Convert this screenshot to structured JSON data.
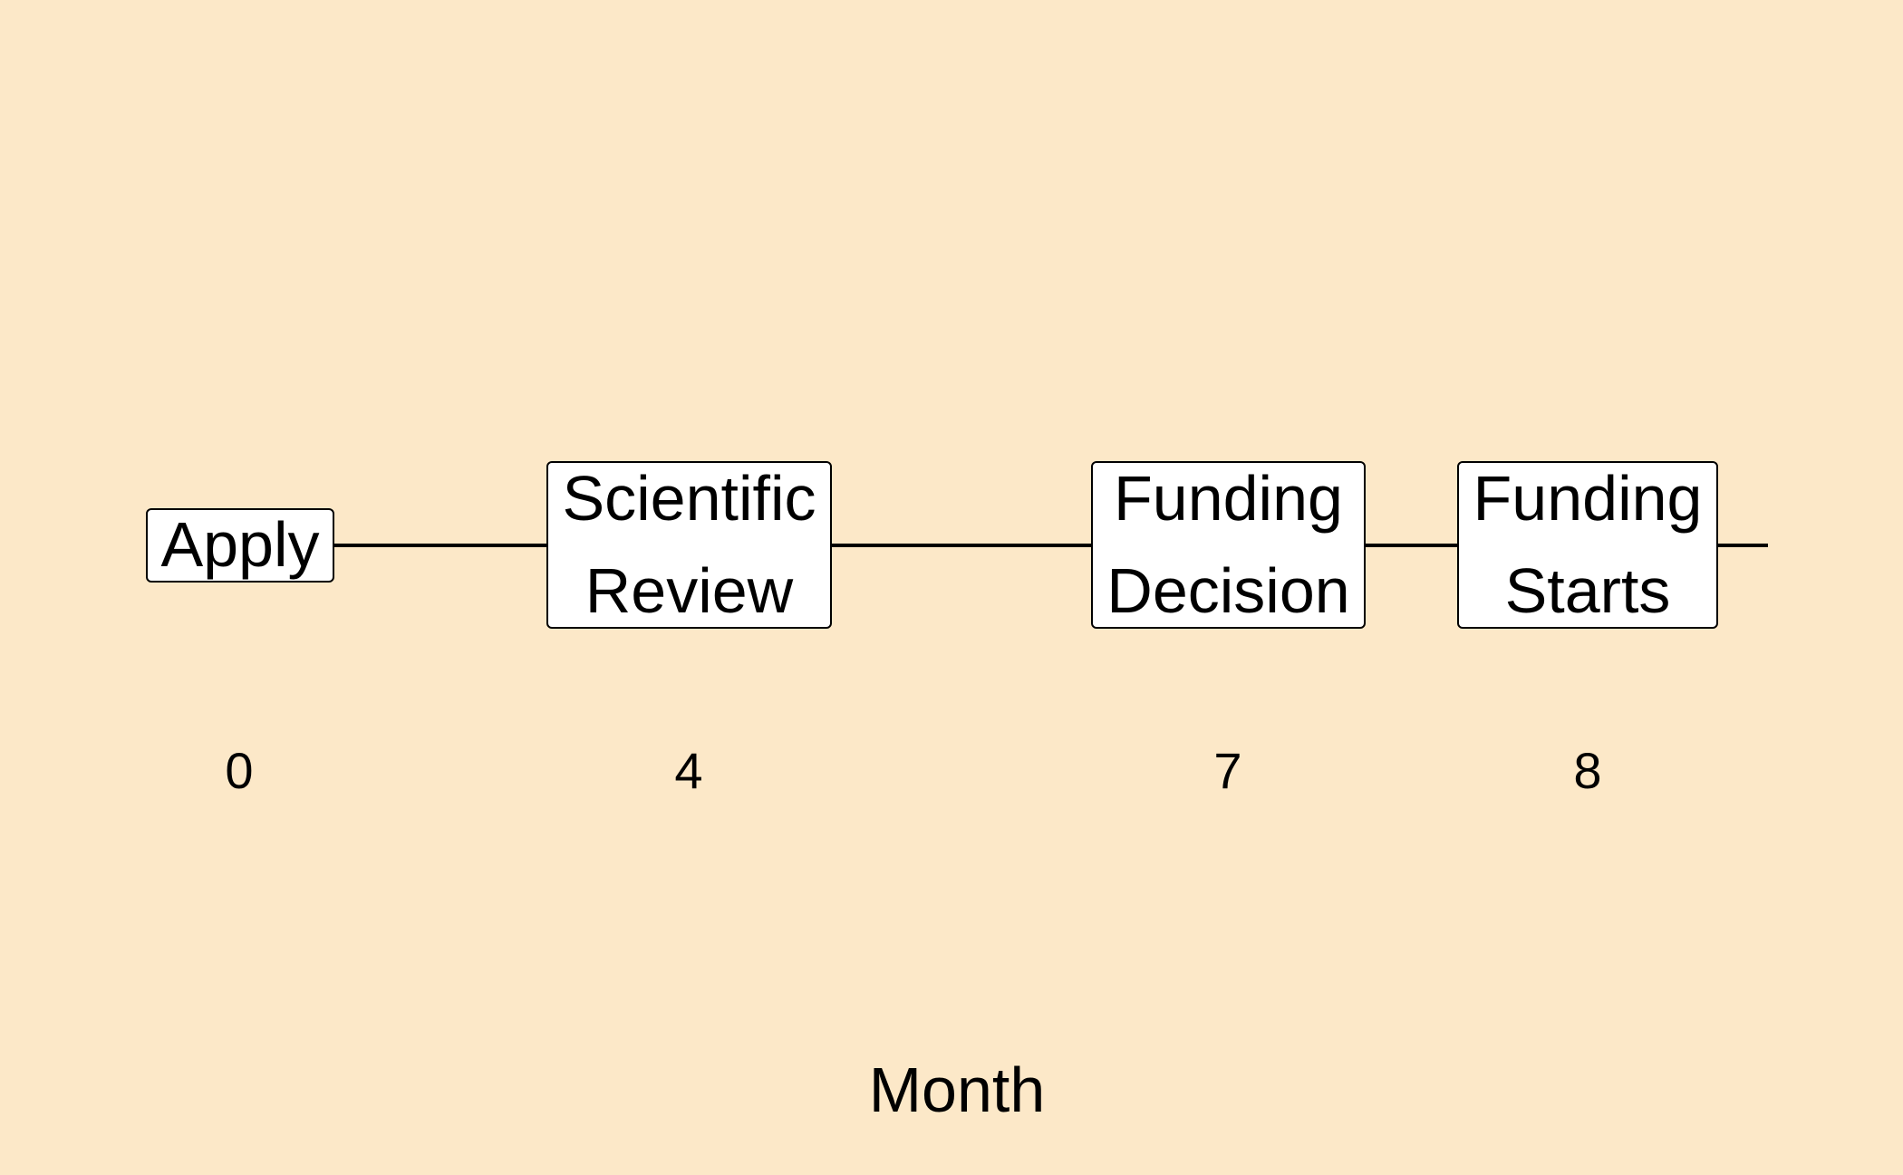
{
  "diagram": {
    "type": "timeline",
    "axis_label": "Month",
    "milestones": [
      {
        "label": "Apply",
        "month": "0"
      },
      {
        "label": "Scientific\nReview",
        "month": "4"
      },
      {
        "label": "Funding\nDecision",
        "month": "7"
      },
      {
        "label": "Funding\nStarts",
        "month": "8"
      }
    ]
  },
  "colors": {
    "background": "#fce8c8",
    "box_fill": "#ffffff",
    "line": "#000000"
  }
}
